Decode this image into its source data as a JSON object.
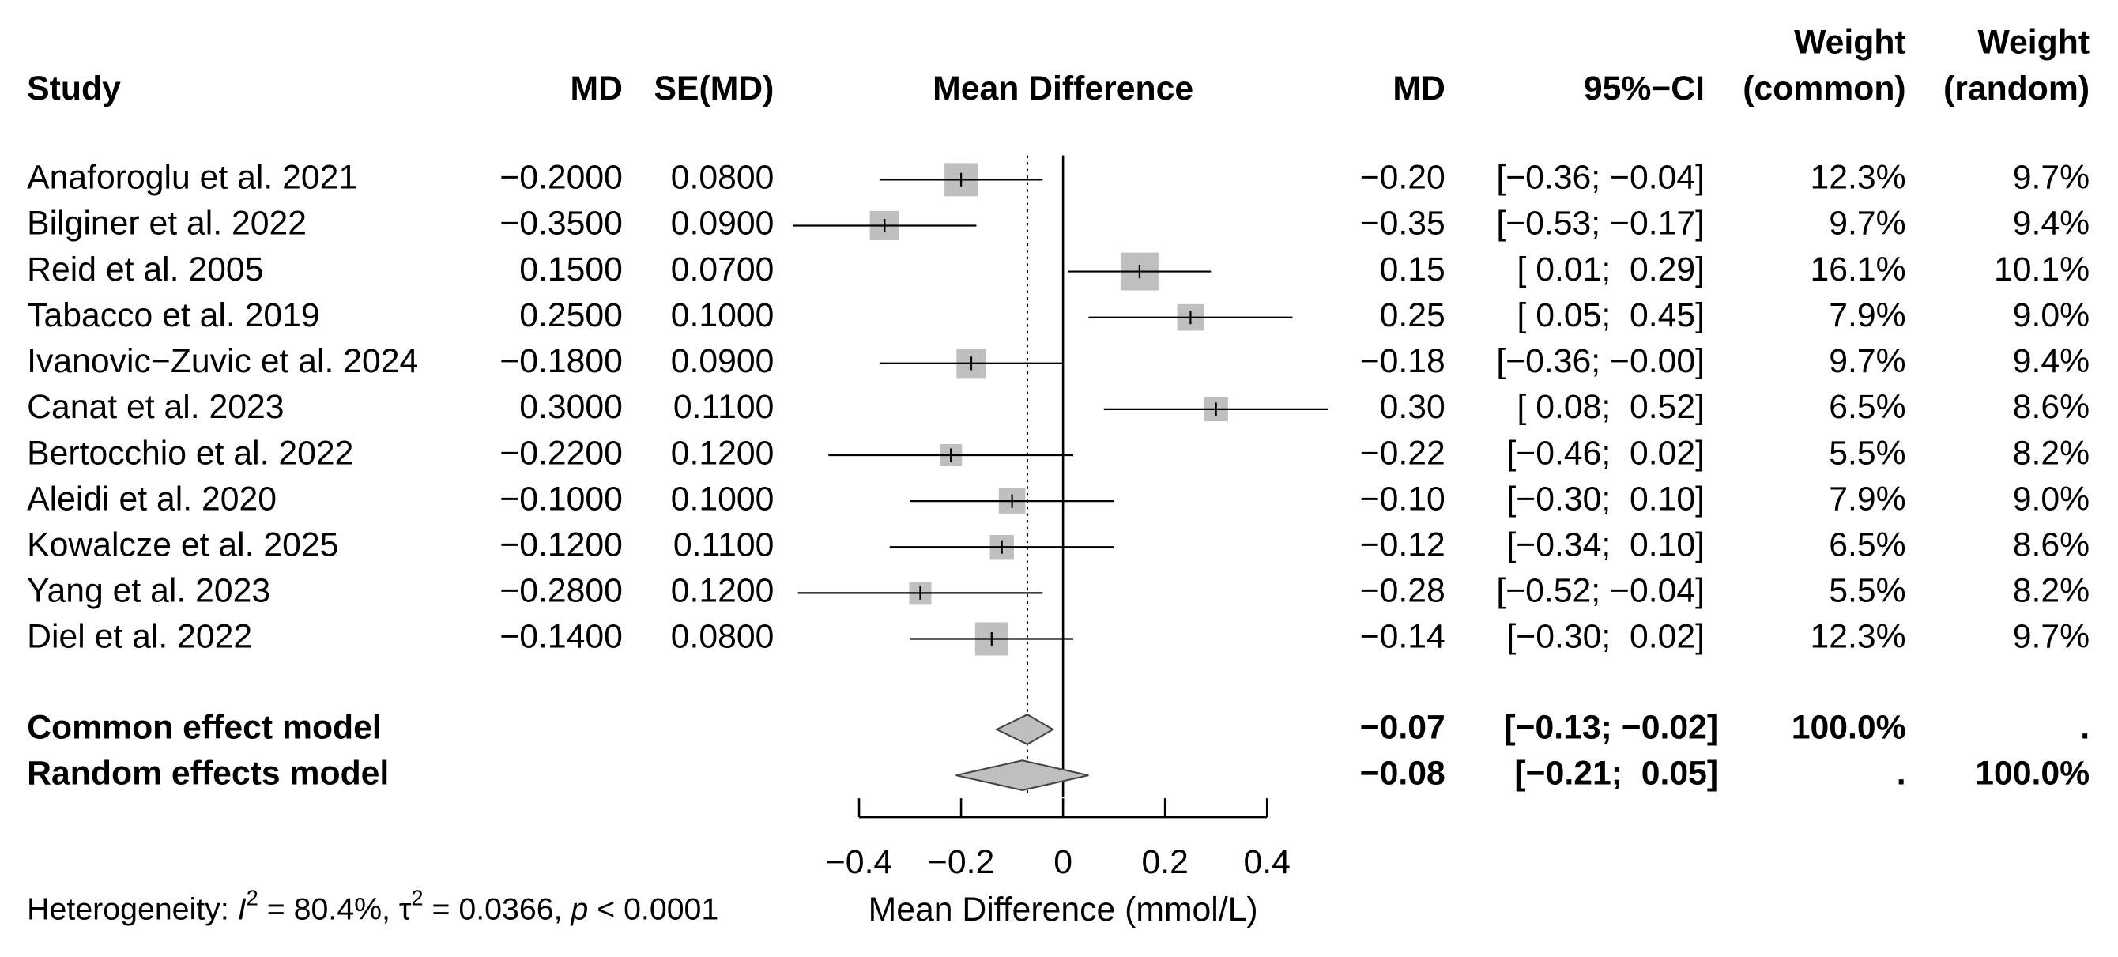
{
  "chart_data": {
    "type": "forest",
    "headers": {
      "study": "Study",
      "md": "MD",
      "se": "SE(MD)",
      "plot": "Mean Difference",
      "md_right": "MD",
      "ci": "95%−CI",
      "weight_common": [
        "Weight",
        "(common)"
      ],
      "weight_random": [
        "Weight",
        "(random)"
      ]
    },
    "categories": [
      "Anaforoglu et al. 2021",
      "Bilginer et al. 2022",
      "Reid et al. 2005",
      "Tabacco et al. 2019",
      "Ivanovic−Zuvic et al. 2024",
      "Canat et al. 2023",
      "Bertocchio et al. 2022",
      "Aleidi et al. 2020",
      "Kowalcze et al. 2025",
      "Yang et al. 2023",
      "Diel et al. 2022"
    ],
    "values": [
      -0.2,
      -0.35,
      0.15,
      0.25,
      -0.18,
      0.3,
      -0.22,
      -0.1,
      -0.12,
      -0.28,
      -0.14
    ],
    "value_labels": [
      "−0.2000",
      "−0.3500",
      "0.1500",
      "0.2500",
      "−0.1800",
      "0.3000",
      "−0.2200",
      "−0.1000",
      "−0.1200",
      "−0.2800",
      "−0.1400"
    ],
    "md_labels": [
      "−0.20",
      "−0.35",
      "0.15",
      "0.25",
      "−0.18",
      "0.30",
      "−0.22",
      "−0.10",
      "−0.12",
      "−0.28",
      "−0.14"
    ],
    "se": [
      "0.0800",
      "0.0900",
      "0.0700",
      "0.1000",
      "0.0900",
      "0.1100",
      "0.1200",
      "0.1000",
      "0.1100",
      "0.1200",
      "0.0800"
    ],
    "ci_lower": [
      -0.36,
      -0.53,
      0.01,
      0.05,
      -0.36,
      0.08,
      -0.46,
      -0.3,
      -0.34,
      -0.52,
      -0.3
    ],
    "ci_upper": [
      -0.04,
      -0.17,
      0.29,
      0.45,
      0.0,
      0.52,
      0.02,
      0.1,
      0.1,
      -0.04,
      0.02
    ],
    "ci_labels": [
      "[−0.36; −0.04]",
      "[−0.53; −0.17]",
      "[ 0.01;  0.29]",
      "[ 0.05;  0.45]",
      "[−0.36; −0.00]",
      "[ 0.08;  0.52]",
      "[−0.46;  0.02]",
      "[−0.30;  0.10]",
      "[−0.34;  0.10]",
      "[−0.52; −0.04]",
      "[−0.30;  0.02]"
    ],
    "weights_common": [
      12.3,
      9.7,
      16.1,
      7.9,
      9.7,
      6.5,
      5.5,
      7.9,
      6.5,
      5.5,
      12.3
    ],
    "weights_common_labels": [
      "12.3%",
      "9.7%",
      "16.1%",
      "7.9%",
      "9.7%",
      "6.5%",
      "5.5%",
      "7.9%",
      "6.5%",
      "5.5%",
      "12.3%"
    ],
    "weights_random": [
      "9.7%",
      "9.4%",
      "10.1%",
      "9.0%",
      "9.4%",
      "8.6%",
      "8.2%",
      "9.0%",
      "8.6%",
      "8.2%",
      "9.7%"
    ],
    "models": [
      {
        "name": "Common effect model",
        "value": -0.07,
        "value_label": "−0.07",
        "ci_lower": -0.13,
        "ci_upper": -0.02,
        "ci_label": "[−0.13; −0.02]",
        "weight_common": "100.0%",
        "weight_random": "."
      },
      {
        "name": "Random effects model",
        "value": -0.08,
        "value_label": "−0.08",
        "ci_lower": -0.21,
        "ci_upper": 0.05,
        "ci_label": "[−0.21;  0.05]",
        "weight_common": ".",
        "weight_random": "100.0%"
      }
    ],
    "xlim": [
      -0.4,
      0.4
    ],
    "xticks": [
      {
        "value": -0.4,
        "label": "−0.4"
      },
      {
        "value": -0.2,
        "label": "−0.2"
      },
      0,
      0.2,
      0.4
    ],
    "xlabel": "Mean Difference (mmol/L)",
    "heterogeneity": [
      "Heterogeneity: ",
      "I",
      "2",
      " = 80.4%, ",
      "τ",
      "2",
      " = 0.0366, ",
      "p",
      " < 0.0001"
    ],
    "square_color": "#bfbfbf"
  }
}
